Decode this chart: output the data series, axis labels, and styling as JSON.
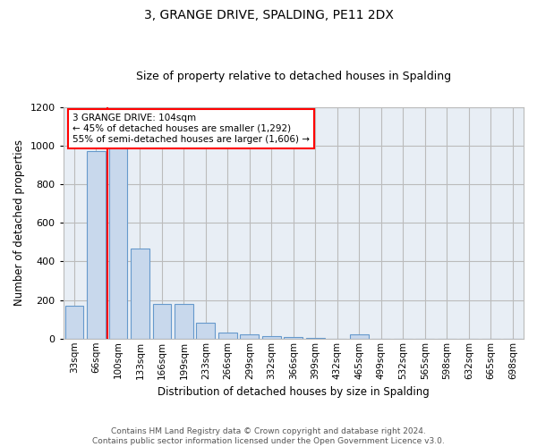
{
  "title1": "3, GRANGE DRIVE, SPALDING, PE11 2DX",
  "title2": "Size of property relative to detached houses in Spalding",
  "xlabel": "Distribution of detached houses by size in Spalding",
  "ylabel": "Number of detached properties",
  "bar_labels": [
    "33sqm",
    "66sqm",
    "100sqm",
    "133sqm",
    "166sqm",
    "199sqm",
    "233sqm",
    "266sqm",
    "299sqm",
    "332sqm",
    "366sqm",
    "399sqm",
    "432sqm",
    "465sqm",
    "499sqm",
    "532sqm",
    "565sqm",
    "598sqm",
    "632sqm",
    "665sqm",
    "698sqm"
  ],
  "bar_values": [
    170,
    970,
    1000,
    465,
    180,
    180,
    80,
    30,
    20,
    15,
    10,
    5,
    0,
    20,
    0,
    0,
    0,
    0,
    0,
    0,
    0
  ],
  "bar_color": "#C8D8EC",
  "bar_edge_color": "#6699CC",
  "ylim": [
    0,
    1200
  ],
  "yticks": [
    0,
    200,
    400,
    600,
    800,
    1000,
    1200
  ],
  "red_line_x": 1.5,
  "annotation_text": "3 GRANGE DRIVE: 104sqm\n← 45% of detached houses are smaller (1,292)\n55% of semi-detached houses are larger (1,606) →",
  "footer_text": "Contains HM Land Registry data © Crown copyright and database right 2024.\nContains public sector information licensed under the Open Government Licence v3.0.",
  "plot_bg_color": "#E8EEF5",
  "fig_bg_color": "#FFFFFF",
  "grid_color": "#BBBBBB"
}
